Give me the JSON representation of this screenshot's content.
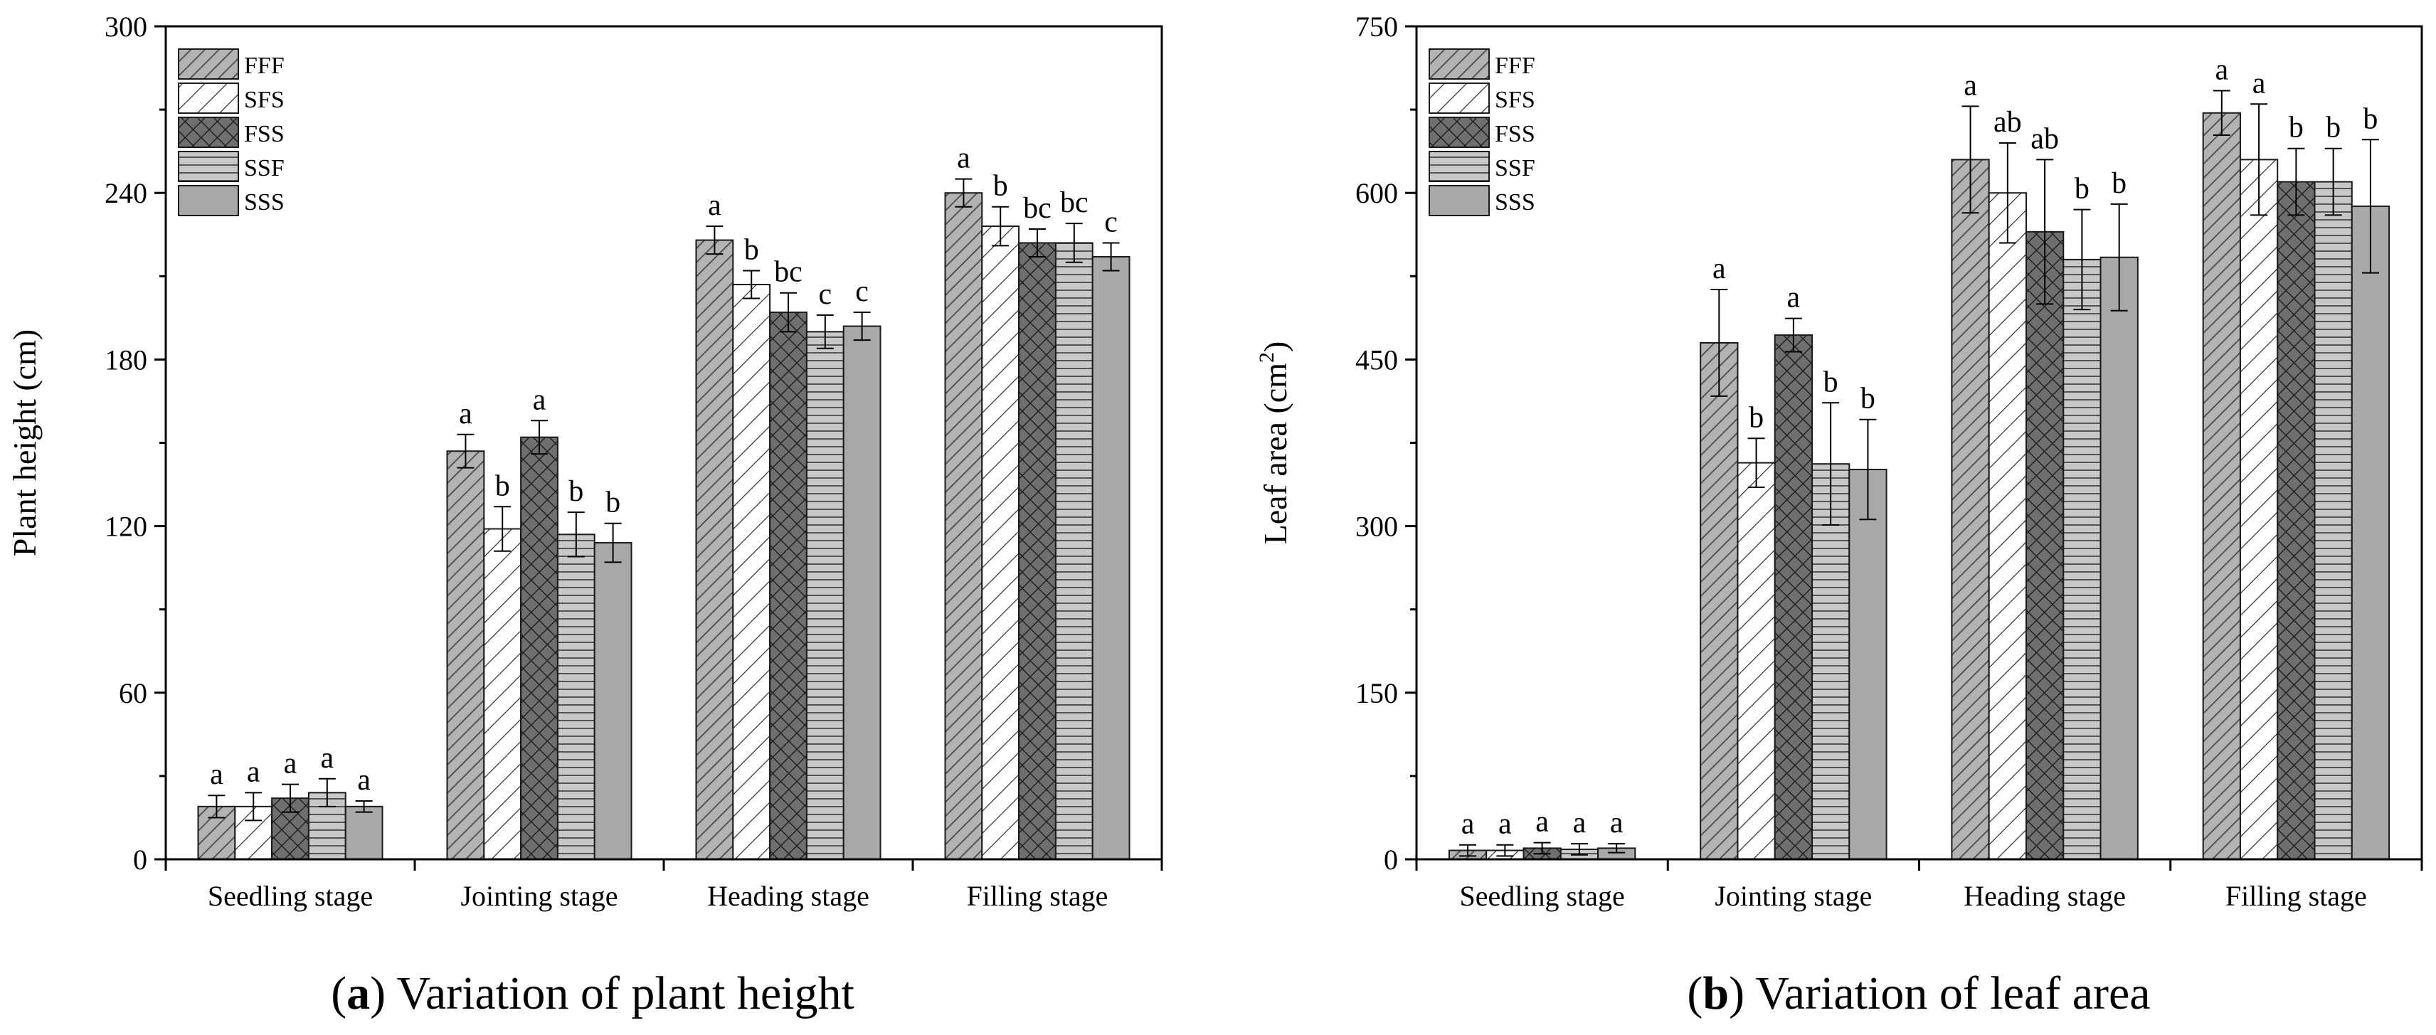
{
  "chart_data": [
    {
      "type": "bar",
      "caption_label": "a",
      "caption_text": "Variation of plant height",
      "ylabel": "Plant height (cm)",
      "xlabel": "",
      "ylim": [
        0,
        300
      ],
      "yticks": [
        0,
        60,
        120,
        180,
        240,
        300
      ],
      "categories": [
        "Seedling stage",
        "Jointing stage",
        "Heading stage",
        "Filling stage"
      ],
      "legend_position": "top-left",
      "series": [
        {
          "name": "FFF",
          "values": [
            19,
            147,
            223,
            240
          ],
          "errors": [
            4,
            6,
            5,
            5
          ],
          "letters": [
            "a",
            "a",
            "a",
            "a"
          ]
        },
        {
          "name": "SFS",
          "values": [
            19,
            119,
            207,
            228
          ],
          "errors": [
            5,
            8,
            5,
            7
          ],
          "letters": [
            "a",
            "b",
            "b",
            "b"
          ]
        },
        {
          "name": "FSS",
          "values": [
            22,
            152,
            197,
            222
          ],
          "errors": [
            5,
            6,
            7,
            5
          ],
          "letters": [
            "a",
            "a",
            "bc",
            "bc"
          ]
        },
        {
          "name": "SSF",
          "values": [
            24,
            117,
            190,
            222
          ],
          "errors": [
            5,
            8,
            6,
            7
          ],
          "letters": [
            "a",
            "b",
            "c",
            "bc"
          ]
        },
        {
          "name": "SSS",
          "values": [
            19,
            114,
            192,
            217
          ],
          "errors": [
            2,
            7,
            5,
            5
          ],
          "letters": [
            "a",
            "b",
            "c",
            "c"
          ]
        }
      ]
    },
    {
      "type": "bar",
      "caption_label": "b",
      "caption_text": "Variation of leaf area",
      "ylabel": "Leaf area (cm",
      "ylabel_sup": "2",
      "ylabel_end": ")",
      "xlabel": "",
      "ylim": [
        0,
        750
      ],
      "yticks": [
        0,
        150,
        300,
        450,
        600,
        750
      ],
      "categories": [
        "Seedling stage",
        "Jointing stage",
        "Heading stage",
        "Filling stage"
      ],
      "legend_position": "top-left",
      "series": [
        {
          "name": "FFF",
          "values": [
            8,
            465,
            630,
            672
          ],
          "errors": [
            5,
            48,
            48,
            20
          ],
          "letters": [
            "a",
            "a",
            "a",
            "a"
          ]
        },
        {
          "name": "SFS",
          "values": [
            8,
            357,
            600,
            630
          ],
          "errors": [
            5,
            22,
            45,
            50
          ],
          "letters": [
            "a",
            "b",
            "ab",
            "a"
          ]
        },
        {
          "name": "FSS",
          "values": [
            10,
            472,
            565,
            610
          ],
          "errors": [
            5,
            15,
            65,
            30
          ],
          "letters": [
            "a",
            "a",
            "ab",
            "b"
          ]
        },
        {
          "name": "SSF",
          "values": [
            9,
            356,
            540,
            610
          ],
          "errors": [
            5,
            55,
            45,
            30
          ],
          "letters": [
            "a",
            "b",
            "b",
            "b"
          ]
        },
        {
          "name": "SSS",
          "values": [
            10,
            351,
            542,
            588
          ],
          "errors": [
            4,
            45,
            48,
            60
          ],
          "letters": [
            "a",
            "b",
            "b",
            "b"
          ]
        }
      ]
    }
  ]
}
